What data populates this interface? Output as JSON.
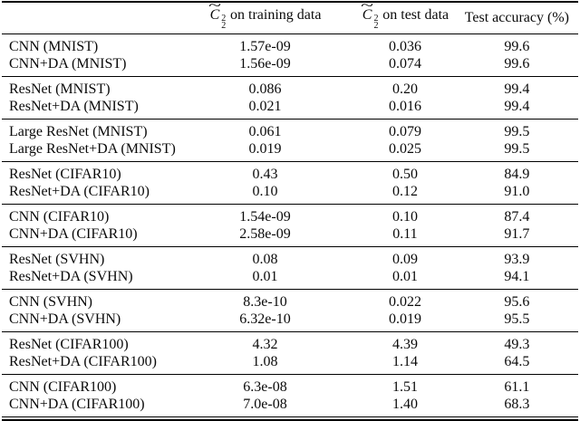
{
  "table": {
    "columns": [
      {
        "label": ""
      },
      {
        "symbol": "C",
        "tilde": "~",
        "sup": "2",
        "sub": "2",
        "suffix": "on training data"
      },
      {
        "symbol": "C",
        "tilde": "~",
        "sup": "2",
        "sub": "2",
        "suffix": "on test data"
      },
      {
        "label": "Test accuracy (%)"
      }
    ],
    "groups": [
      {
        "rows": [
          {
            "model": "CNN (MNIST)",
            "train": "1.57e-09",
            "test": "0.036",
            "acc": "99.6"
          },
          {
            "model": "CNN+DA (MNIST)",
            "train": "1.56e-09",
            "test": "0.074",
            "acc": "99.6"
          }
        ]
      },
      {
        "rows": [
          {
            "model": "ResNet (MNIST)",
            "train": "0.086",
            "test": "0.20",
            "acc": "99.4"
          },
          {
            "model": "ResNet+DA (MNIST)",
            "train": "0.021",
            "test": "0.016",
            "acc": "99.4"
          }
        ]
      },
      {
        "rows": [
          {
            "model": "Large ResNet (MNIST)",
            "train": "0.061",
            "test": "0.079",
            "acc": "99.5"
          },
          {
            "model": "Large ResNet+DA (MNIST)",
            "train": "0.019",
            "test": "0.025",
            "acc": "99.5"
          }
        ]
      },
      {
        "rows": [
          {
            "model": "ResNet (CIFAR10)",
            "train": "0.43",
            "test": "0.50",
            "acc": "84.9"
          },
          {
            "model": "ResNet+DA (CIFAR10)",
            "train": "0.10",
            "test": "0.12",
            "acc": "91.0"
          }
        ]
      },
      {
        "rows": [
          {
            "model": "CNN (CIFAR10)",
            "train": "1.54e-09",
            "test": "0.10",
            "acc": "87.4"
          },
          {
            "model": "CNN+DA (CIFAR10)",
            "train": "2.58e-09",
            "test": "0.11",
            "acc": "91.7"
          }
        ]
      },
      {
        "rows": [
          {
            "model": "ResNet (SVHN)",
            "train": "0.08",
            "test": "0.09",
            "acc": "93.9"
          },
          {
            "model": "ResNet+DA (SVHN)",
            "train": "0.01",
            "test": "0.01",
            "acc": "94.1"
          }
        ]
      },
      {
        "rows": [
          {
            "model": "CNN (SVHN)",
            "train": "8.3e-10",
            "test": "0.022",
            "acc": "95.6"
          },
          {
            "model": "CNN+DA (SVHN)",
            "train": "6.32e-10",
            "test": "0.019",
            "acc": "95.5"
          }
        ]
      },
      {
        "rows": [
          {
            "model": "ResNet (CIFAR100)",
            "train": "4.32",
            "test": "4.39",
            "acc": "49.3"
          },
          {
            "model": "ResNet+DA (CIFAR100)",
            "train": "1.08",
            "test": "1.14",
            "acc": "64.5"
          }
        ]
      },
      {
        "rows": [
          {
            "model": "CNN (CIFAR100)",
            "train": "6.3e-08",
            "test": "1.51",
            "acc": "61.1"
          },
          {
            "model": "CNN+DA (CIFAR100)",
            "train": "7.0e-08",
            "test": "1.40",
            "acc": "68.3"
          }
        ]
      }
    ]
  },
  "colors": {
    "text": "#0a0a0a",
    "rule": "#000000",
    "background": "#ffffff"
  }
}
